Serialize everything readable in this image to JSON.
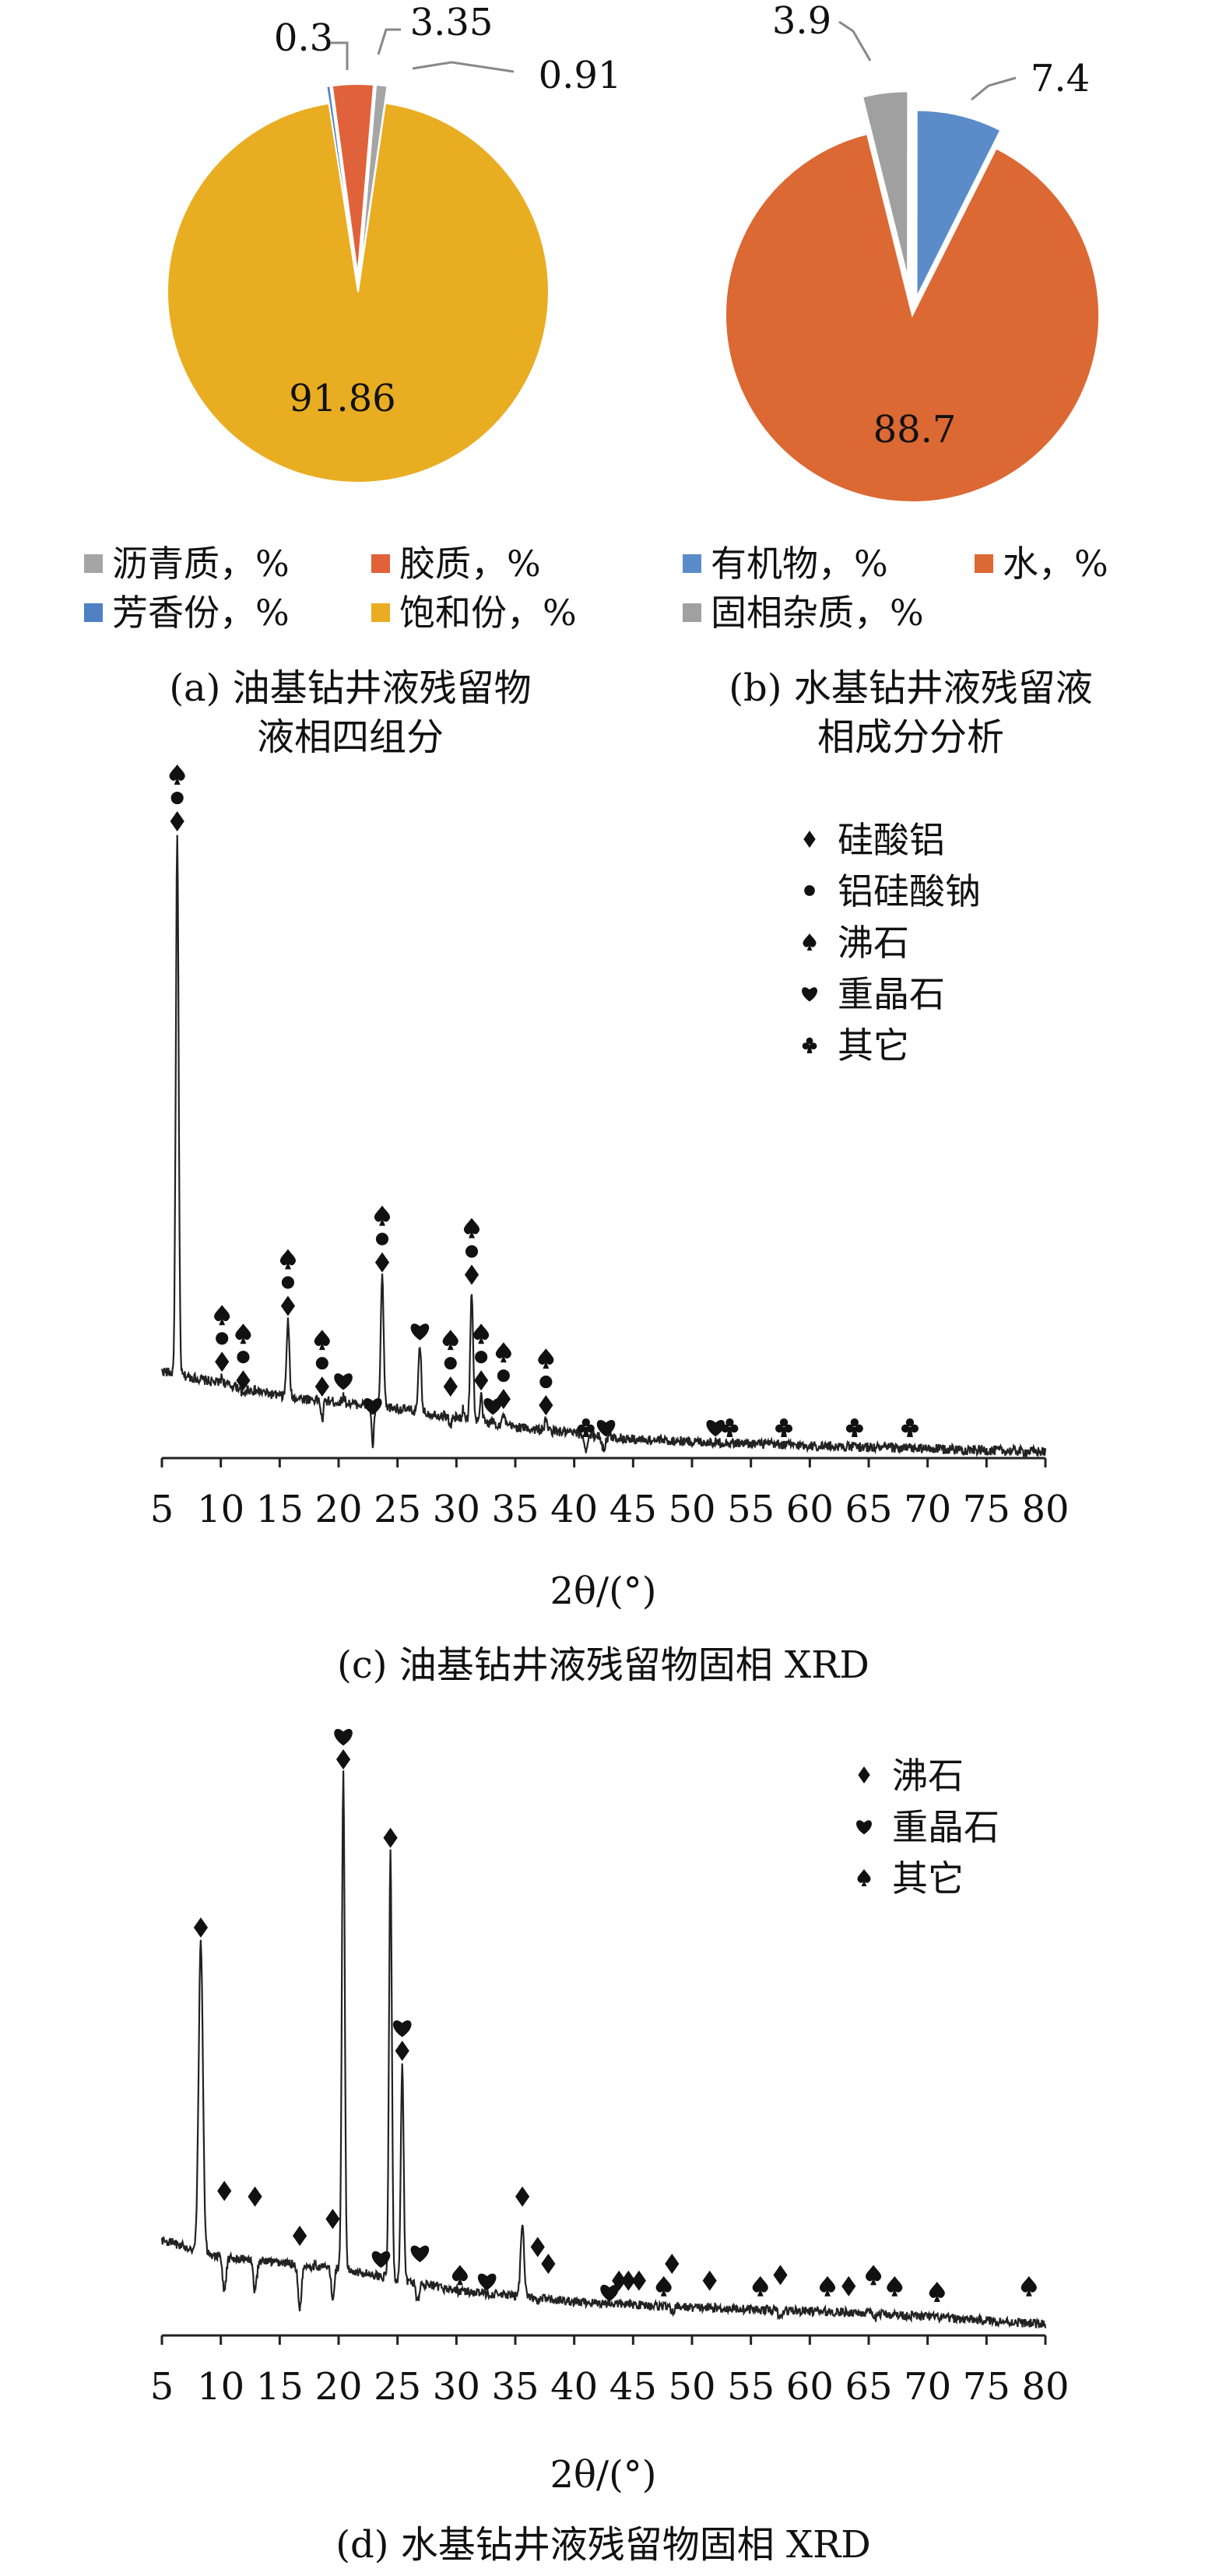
{
  "colors": {
    "asphaltene": "#a5a5a5",
    "resin": "#e0623a",
    "aromatic": "#4e80c2",
    "saturate": "#e9ad22",
    "organic": "#5b8cc9",
    "water": "#dc6833",
    "solid_impurity": "#a0a0a0",
    "line": "#222222"
  },
  "chart_data": [
    {
      "id": "a",
      "type": "pie",
      "title": "",
      "caption_line1": "(a) 油基钻井液残留物",
      "caption_line2": "液相四组分",
      "slices": [
        {
          "name": "沥青质，%",
          "value": 0.91,
          "label": "0.91",
          "color_key": "asphaltene"
        },
        {
          "name": "胶质，%",
          "value": 3.35,
          "label": "3.35",
          "color_key": "resin"
        },
        {
          "name": "芳香份，%",
          "value": 0.3,
          "label": "0.3",
          "color_key": "aromatic"
        },
        {
          "name": "饱和份，%",
          "value": 91.86,
          "label": "91.86",
          "color_key": "saturate"
        }
      ],
      "legend": {
        "placement": "bottom",
        "entries": [
          "沥青质，%",
          "胶质，%",
          "芳香份，%",
          "饱和份，%"
        ]
      }
    },
    {
      "id": "b",
      "type": "pie",
      "title": "",
      "caption_line1": "(b) 水基钻井液残留液",
      "caption_line2": "相成分分析",
      "slices": [
        {
          "name": "有机物，%",
          "value": 7.4,
          "label": "7.4",
          "color_key": "organic"
        },
        {
          "name": "水，%",
          "value": 88.7,
          "label": "88.7",
          "color_key": "water"
        },
        {
          "name": "固相杂质，%",
          "value": 3.9,
          "label": "3.9",
          "color_key": "solid_impurity"
        }
      ],
      "legend": {
        "placement": "bottom",
        "entries": [
          "有机物，%",
          "水，%",
          "固相杂质，%"
        ]
      }
    },
    {
      "id": "c",
      "type": "line",
      "title": "",
      "caption": "(c) 油基钻井液残留物固相 XRD",
      "xlabel": "2θ/(°)",
      "ylabel": "",
      "xlim": [
        5,
        80
      ],
      "xticks": [
        5,
        10,
        15,
        20,
        25,
        30,
        35,
        40,
        45,
        50,
        55,
        60,
        65,
        70,
        75,
        80
      ],
      "ylim": [
        0,
        100
      ],
      "y_axis_visible": false,
      "grid": false,
      "legend": {
        "placement": "top-right",
        "entries": [
          {
            "symbol": "diamond",
            "label": "硅酸铝"
          },
          {
            "symbol": "circle",
            "label": "铝硅酸钠"
          },
          {
            "symbol": "spade",
            "label": "沸石"
          },
          {
            "symbol": "heart",
            "label": "重晶石"
          },
          {
            "symbol": "club",
            "label": "其它"
          }
        ]
      },
      "baseline": [
        [
          5,
          14
        ],
        [
          15,
          10
        ],
        [
          25,
          8
        ],
        [
          35,
          5
        ],
        [
          45,
          3
        ],
        [
          60,
          2
        ],
        [
          80,
          1
        ]
      ],
      "peaks": [
        {
          "x": 6.3,
          "y": 100,
          "w": 0.12
        },
        {
          "x": 10.1,
          "y": 13,
          "w": 0.12
        },
        {
          "x": 11.9,
          "y": 10,
          "w": 0.12
        },
        {
          "x": 15.7,
          "y": 22,
          "w": 0.12
        },
        {
          "x": 18.6,
          "y": 6,
          "w": 0.1
        },
        {
          "x": 20.4,
          "y": 10,
          "w": 0.1
        },
        {
          "x": 22.9,
          "y": 2,
          "w": 0.1
        },
        {
          "x": 23.7,
          "y": 29,
          "w": 0.12
        },
        {
          "x": 26.9,
          "y": 18,
          "w": 0.12
        },
        {
          "x": 29.5,
          "y": 5,
          "w": 0.1
        },
        {
          "x": 30.6,
          "y": 8,
          "w": 0.1
        },
        {
          "x": 31.3,
          "y": 27,
          "w": 0.12
        },
        {
          "x": 32.1,
          "y": 10,
          "w": 0.1
        },
        {
          "x": 33.1,
          "y": 6,
          "w": 0.1
        },
        {
          "x": 34.0,
          "y": 7,
          "w": 0.1
        },
        {
          "x": 37.6,
          "y": 6,
          "w": 0.12
        },
        {
          "x": 41.0,
          "y": 1.5,
          "w": 0.15
        },
        {
          "x": 42.5,
          "y": 1.5,
          "w": 0.15
        }
      ],
      "markers": [
        {
          "x": 6.3,
          "y": 100,
          "symbols": [
            "spade",
            "circle",
            "diamond"
          ]
        },
        {
          "x": 10.1,
          "y": 13,
          "symbols": [
            "spade",
            "circle",
            "diamond"
          ]
        },
        {
          "x": 11.9,
          "y": 10,
          "symbols": [
            "spade",
            "circle",
            "diamond"
          ]
        },
        {
          "x": 15.7,
          "y": 22,
          "symbols": [
            "spade",
            "circle",
            "diamond"
          ]
        },
        {
          "x": 18.6,
          "y": 9,
          "symbols": [
            "spade",
            "circle",
            "diamond"
          ]
        },
        {
          "x": 20.4,
          "y": 10,
          "symbols": [
            "heart"
          ]
        },
        {
          "x": 22.9,
          "y": 6,
          "symbols": [
            "heart"
          ]
        },
        {
          "x": 23.7,
          "y": 29,
          "symbols": [
            "spade",
            "circle",
            "diamond"
          ]
        },
        {
          "x": 26.9,
          "y": 18,
          "symbols": [
            "heart"
          ]
        },
        {
          "x": 29.5,
          "y": 9,
          "symbols": [
            "spade",
            "circle",
            "diamond"
          ]
        },
        {
          "x": 31.3,
          "y": 27,
          "symbols": [
            "spade",
            "circle",
            "diamond"
          ]
        },
        {
          "x": 32.1,
          "y": 10,
          "symbols": [
            "spade",
            "circle",
            "diamond"
          ]
        },
        {
          "x": 33.1,
          "y": 6,
          "symbols": [
            "heart"
          ]
        },
        {
          "x": 34.0,
          "y": 7,
          "symbols": [
            "spade",
            "circle",
            "diamond"
          ]
        },
        {
          "x": 37.6,
          "y": 6,
          "symbols": [
            "spade",
            "circle",
            "diamond"
          ]
        },
        {
          "x": 41.0,
          "y": 2.5,
          "symbols": [
            "club"
          ]
        },
        {
          "x": 42.7,
          "y": 2.5,
          "symbols": [
            "heart"
          ]
        },
        {
          "x": 52.0,
          "y": 2.5,
          "symbols": [
            "heart"
          ]
        },
        {
          "x": 53.2,
          "y": 2.5,
          "symbols": [
            "club"
          ]
        },
        {
          "x": 57.8,
          "y": 2.5,
          "symbols": [
            "club"
          ]
        },
        {
          "x": 63.8,
          "y": 2.5,
          "symbols": [
            "club"
          ]
        },
        {
          "x": 68.5,
          "y": 2.5,
          "symbols": [
            "club"
          ]
        }
      ]
    },
    {
      "id": "d",
      "type": "line",
      "title": "",
      "caption": "(d) 水基钻井液残留物固相 XRD",
      "xlabel": "2θ/(°)",
      "ylabel": "",
      "xlim": [
        5,
        80
      ],
      "xticks": [
        5,
        10,
        15,
        20,
        25,
        30,
        35,
        40,
        45,
        50,
        55,
        60,
        65,
        70,
        75,
        80
      ],
      "ylim": [
        0,
        100
      ],
      "y_axis_visible": false,
      "grid": false,
      "legend": {
        "placement": "top-right",
        "entries": [
          {
            "symbol": "diamond",
            "label": "沸石"
          },
          {
            "symbol": "heart",
            "label": "重晶石"
          },
          {
            "symbol": "spade",
            "label": "其它"
          }
        ]
      },
      "baseline": [
        [
          5,
          17
        ],
        [
          10,
          14
        ],
        [
          20,
          12
        ],
        [
          30,
          8
        ],
        [
          40,
          6
        ],
        [
          50,
          5
        ],
        [
          65,
          4
        ],
        [
          80,
          2
        ]
      ],
      "peaks": [
        {
          "x": 8.3,
          "y": 70,
          "w": 0.18
        },
        {
          "x": 10.3,
          "y": 8,
          "w": 0.15
        },
        {
          "x": 12.9,
          "y": 8,
          "w": 0.15
        },
        {
          "x": 16.7,
          "y": 5,
          "w": 0.15
        },
        {
          "x": 19.5,
          "y": 6,
          "w": 0.12
        },
        {
          "x": 20.4,
          "y": 100,
          "w": 0.12
        },
        {
          "x": 24.4,
          "y": 86,
          "w": 0.12
        },
        {
          "x": 25.4,
          "y": 48,
          "w": 0.12
        },
        {
          "x": 26.7,
          "y": 6,
          "w": 0.12
        },
        {
          "x": 35.6,
          "y": 20,
          "w": 0.15
        },
        {
          "x": 36.9,
          "y": 6,
          "w": 0.15
        },
        {
          "x": 48.3,
          "y": 4,
          "w": 0.15
        },
        {
          "x": 57.5,
          "y": 3,
          "w": 0.15
        },
        {
          "x": 65.5,
          "y": 3,
          "w": 0.15
        }
      ],
      "markers": [
        {
          "x": 8.3,
          "y": 70,
          "symbols": [
            "diamond"
          ]
        },
        {
          "x": 10.3,
          "y": 23,
          "symbols": [
            "diamond"
          ]
        },
        {
          "x": 12.9,
          "y": 22,
          "symbols": [
            "diamond"
          ]
        },
        {
          "x": 16.7,
          "y": 15,
          "symbols": [
            "diamond"
          ]
        },
        {
          "x": 19.5,
          "y": 18,
          "symbols": [
            "diamond"
          ]
        },
        {
          "x": 20.4,
          "y": 100,
          "symbols": [
            "heart",
            "diamond"
          ]
        },
        {
          "x": 23.6,
          "y": 11,
          "symbols": [
            "heart"
          ]
        },
        {
          "x": 24.4,
          "y": 86,
          "symbols": [
            "diamond"
          ]
        },
        {
          "x": 25.4,
          "y": 48,
          "symbols": [
            "heart",
            "diamond"
          ]
        },
        {
          "x": 26.9,
          "y": 12,
          "symbols": [
            "heart"
          ]
        },
        {
          "x": 30.3,
          "y": 8,
          "symbols": [
            "spade"
          ]
        },
        {
          "x": 32.6,
          "y": 7,
          "symbols": [
            "heart"
          ]
        },
        {
          "x": 35.6,
          "y": 22,
          "symbols": [
            "diamond"
          ]
        },
        {
          "x": 36.9,
          "y": 13,
          "symbols": [
            "diamond"
          ]
        },
        {
          "x": 37.8,
          "y": 10,
          "symbols": [
            "diamond"
          ]
        },
        {
          "x": 43.0,
          "y": 5,
          "symbols": [
            "heart"
          ]
        },
        {
          "x": 43.8,
          "y": 7,
          "symbols": [
            "diamond"
          ]
        },
        {
          "x": 44.6,
          "y": 7,
          "symbols": [
            "diamond"
          ]
        },
        {
          "x": 45.5,
          "y": 7,
          "symbols": [
            "diamond"
          ]
        },
        {
          "x": 47.6,
          "y": 6,
          "symbols": [
            "spade"
          ]
        },
        {
          "x": 48.3,
          "y": 10,
          "symbols": [
            "diamond"
          ]
        },
        {
          "x": 51.5,
          "y": 7,
          "symbols": [
            "diamond"
          ]
        },
        {
          "x": 55.8,
          "y": 6,
          "symbols": [
            "spade"
          ]
        },
        {
          "x": 57.5,
          "y": 8,
          "symbols": [
            "diamond"
          ]
        },
        {
          "x": 61.5,
          "y": 6,
          "symbols": [
            "spade"
          ]
        },
        {
          "x": 63.3,
          "y": 6,
          "symbols": [
            "diamond"
          ]
        },
        {
          "x": 65.4,
          "y": 8,
          "symbols": [
            "spade"
          ]
        },
        {
          "x": 67.2,
          "y": 6,
          "symbols": [
            "spade"
          ]
        },
        {
          "x": 70.8,
          "y": 5,
          "symbols": [
            "spade"
          ]
        },
        {
          "x": 78.6,
          "y": 6,
          "symbols": [
            "spade"
          ]
        }
      ]
    }
  ]
}
